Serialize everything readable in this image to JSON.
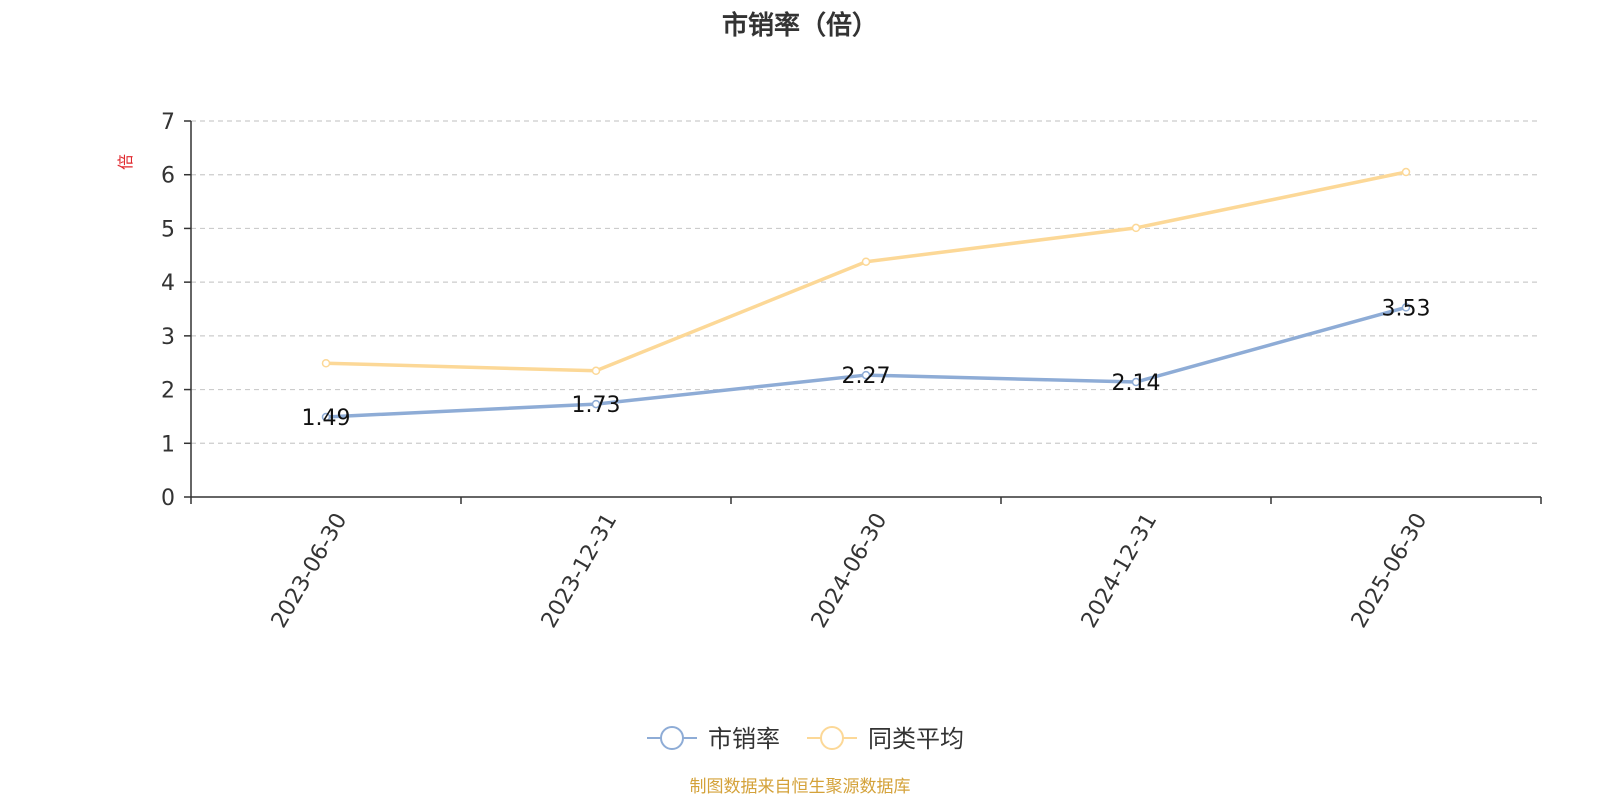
{
  "chart_data": {
    "type": "line",
    "title": "市销率（倍）",
    "ylabel": "倍",
    "xlabel": "",
    "categories": [
      "2023-06-30",
      "2023-12-31",
      "2024-06-30",
      "2024-12-31",
      "2025-06-30"
    ],
    "ylim": [
      0,
      7
    ],
    "yticks": [
      0,
      1,
      2,
      3,
      4,
      5,
      6,
      7
    ],
    "grid": true,
    "legend_position": "bottom-center",
    "series": [
      {
        "name": "市销率",
        "values": [
          1.49,
          1.73,
          2.27,
          2.14,
          3.53
        ],
        "labels": [
          "1.49",
          "1.73",
          "2.27",
          "2.14",
          "3.53"
        ],
        "color": "#8eacd6",
        "show_labels": true
      },
      {
        "name": "同类平均",
        "values": [
          2.49,
          2.35,
          4.38,
          5.01,
          6.05
        ],
        "color": "#fcd897",
        "show_labels": false
      }
    ],
    "source": "制图数据来自恒生聚源数据库"
  },
  "colors": {
    "axis": "#333333",
    "grid": "#cccccc",
    "unit": "#e0282e",
    "source": "#d4a23a"
  }
}
